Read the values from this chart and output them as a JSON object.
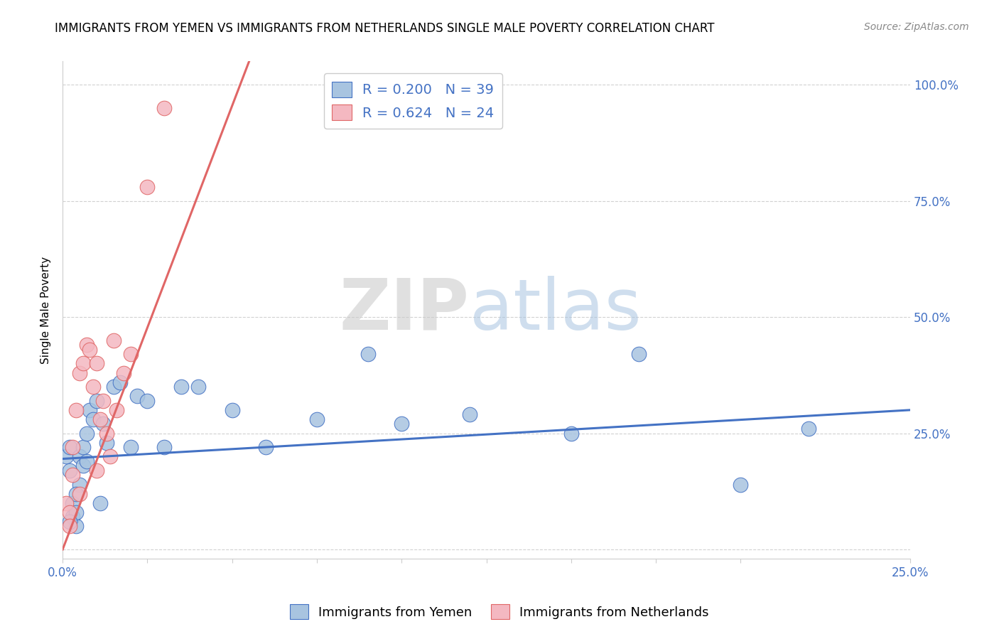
{
  "title": "IMMIGRANTS FROM YEMEN VS IMMIGRANTS FROM NETHERLANDS SINGLE MALE POVERTY CORRELATION CHART",
  "source_text": "Source: ZipAtlas.com",
  "ylabel": "Single Male Poverty",
  "xlim": [
    0.0,
    0.25
  ],
  "ylim": [
    -0.02,
    1.05
  ],
  "ytick_vals": [
    0.0,
    0.25,
    0.5,
    0.75,
    1.0
  ],
  "ytick_labels": [
    "",
    "25.0%",
    "50.0%",
    "75.0%",
    "100.0%"
  ],
  "xtick_vals": [
    0.0,
    0.025,
    0.05,
    0.075,
    0.1,
    0.125,
    0.15,
    0.175,
    0.2,
    0.25
  ],
  "xtick_labels": [
    "0.0%",
    "",
    "",
    "",
    "",
    "",
    "",
    "",
    "",
    "25.0%"
  ],
  "legend1_label": "R = 0.200   N = 39",
  "legend2_label": "R = 0.624   N = 24",
  "scatter1_color": "#a8c4e0",
  "scatter2_color": "#f4b8c1",
  "scatter1_edge": "#4472c4",
  "scatter2_edge": "#e06666",
  "line1_color": "#4472c4",
  "line2_color": "#e06666",
  "tick_color": "#4472c4",
  "watermark_zip": "ZIP",
  "watermark_atlas": "atlas",
  "title_fontsize": 12,
  "ylabel_fontsize": 11,
  "source_fontsize": 10,
  "yemen_x": [
    0.001,
    0.002,
    0.002,
    0.003,
    0.003,
    0.004,
    0.004,
    0.005,
    0.005,
    0.006,
    0.006,
    0.007,
    0.007,
    0.008,
    0.009,
    0.01,
    0.011,
    0.012,
    0.013,
    0.015,
    0.017,
    0.02,
    0.022,
    0.025,
    0.03,
    0.035,
    0.04,
    0.05,
    0.06,
    0.075,
    0.09,
    0.1,
    0.12,
    0.15,
    0.17,
    0.2,
    0.22,
    0.002,
    0.004
  ],
  "yemen_y": [
    0.2,
    0.17,
    0.22,
    0.1,
    0.07,
    0.05,
    0.08,
    0.2,
    0.14,
    0.22,
    0.18,
    0.25,
    0.19,
    0.3,
    0.28,
    0.32,
    0.1,
    0.27,
    0.23,
    0.35,
    0.36,
    0.22,
    0.33,
    0.32,
    0.22,
    0.35,
    0.35,
    0.3,
    0.22,
    0.28,
    0.42,
    0.27,
    0.29,
    0.25,
    0.42,
    0.14,
    0.26,
    0.06,
    0.12
  ],
  "neth_x": [
    0.001,
    0.002,
    0.002,
    0.003,
    0.003,
    0.004,
    0.005,
    0.005,
    0.006,
    0.007,
    0.008,
    0.009,
    0.01,
    0.01,
    0.011,
    0.012,
    0.013,
    0.014,
    0.015,
    0.016,
    0.018,
    0.02,
    0.025,
    0.03
  ],
  "neth_y": [
    0.1,
    0.08,
    0.05,
    0.22,
    0.16,
    0.3,
    0.38,
    0.12,
    0.4,
    0.44,
    0.43,
    0.35,
    0.4,
    0.17,
    0.28,
    0.32,
    0.25,
    0.2,
    0.45,
    0.3,
    0.38,
    0.42,
    0.78,
    0.95
  ],
  "line1_x0": 0.0,
  "line1_y0": 0.195,
  "line1_x1": 0.25,
  "line1_y1": 0.3,
  "line2_x0": 0.0,
  "line2_y0": 0.0,
  "line2_x1": 0.055,
  "line2_y1": 1.05
}
